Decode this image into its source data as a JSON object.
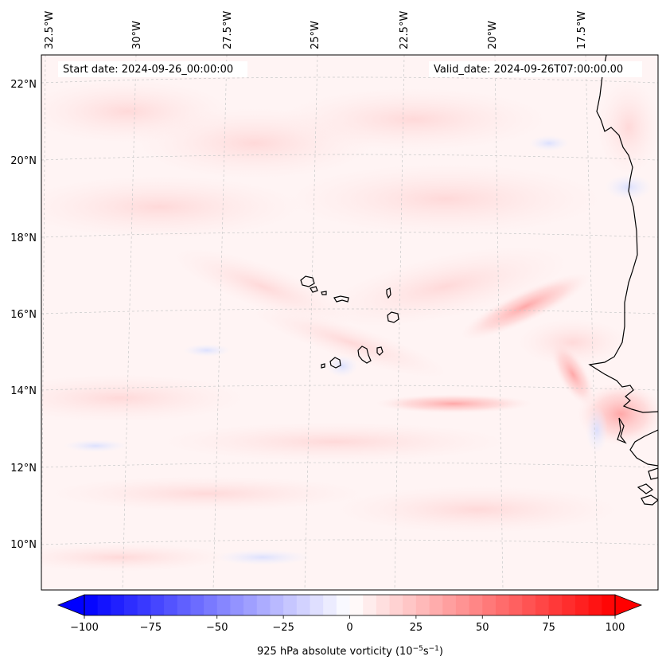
{
  "map": {
    "start_date_text": "Start date: 2024-09-26_00:00:00",
    "valid_date_text": "Valid_date: 2024-09-26T07:00:00.00",
    "lon_labels": [
      "32.5°W",
      "30°W",
      "27.5°W",
      "25°W",
      "22.5°W",
      "20°W",
      "17.5°W"
    ],
    "lat_labels": [
      "22°N",
      "20°N",
      "18°N",
      "16°N",
      "14°N",
      "12°N",
      "10°N"
    ],
    "colors": {
      "land_outline": "#000000",
      "grid": "#cccccc",
      "positive": "#ff0000",
      "negative": "#0000ff",
      "neutral": "#ffffff"
    }
  },
  "colorbar": {
    "label_text": "925 hPa absolute vorticity (10",
    "label_exp1": "−5",
    "label_mid": "s",
    "label_exp2": "−1",
    "label_close": ")",
    "tick_labels": [
      "−100",
      "−75",
      "−50",
      "−25",
      "0",
      "25",
      "50",
      "75",
      "100"
    ],
    "min": -100,
    "max": 100,
    "levels": 40
  }
}
